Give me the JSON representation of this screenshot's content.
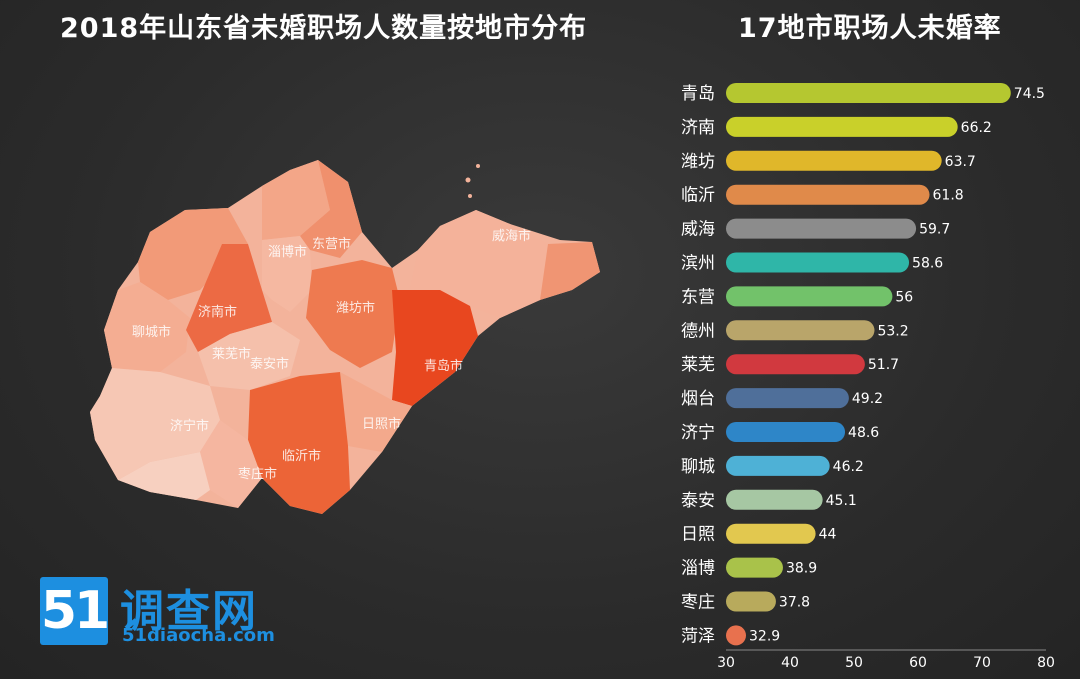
{
  "titles": {
    "map": "2018年山东省未婚职场人数量按地市分布",
    "bar": "17地市职场人未婚率"
  },
  "map_labels": [
    "聊城市",
    "济南市",
    "淄博市",
    "东营市",
    "潍坊市",
    "莱芜市",
    "泰安市",
    "济宁市",
    "青岛市",
    "日照市",
    "临沂市",
    "枣庄市",
    "威海市"
  ],
  "chart_data": [
    {
      "type": "bar",
      "orientation": "horizontal",
      "title": "17地市职场人未婚率",
      "categories": [
        "青岛",
        "济南",
        "潍坊",
        "临沂",
        "威海",
        "滨州",
        "东营",
        "德州",
        "莱芜",
        "烟台",
        "济宁",
        "聊城",
        "泰安",
        "日照",
        "淄博",
        "枣庄",
        "菏泽"
      ],
      "values": [
        74.5,
        66.2,
        63.7,
        61.8,
        59.7,
        58.6,
        56,
        53.2,
        51.7,
        49.2,
        48.6,
        46.2,
        45.1,
        44,
        38.9,
        37.8,
        32.9
      ],
      "value_labels": [
        "74.5",
        "66.2",
        "63.7",
        "61.8",
        "59.7",
        "58.6",
        "56",
        "53.2",
        "51.7",
        "49.2",
        "48.6",
        "46.2",
        "45.1",
        "44",
        "38.9",
        "37.8",
        "32.9"
      ],
      "colors": [
        "#b5c730",
        "#c9d02a",
        "#e0b72a",
        "#e08a4a",
        "#8c8c8c",
        "#2fb6a8",
        "#72c26a",
        "#b9a56a",
        "#d1393f",
        "#4f6f9a",
        "#2e86c8",
        "#4eb1d6",
        "#a6c7a3",
        "#e2c84f",
        "#a9c24a",
        "#b8aa5c",
        "#e8714e"
      ],
      "xlim": [
        30,
        80
      ],
      "xticks": [
        "30",
        "40",
        "50",
        "60",
        "70",
        "80"
      ],
      "legend": "none",
      "grid": false
    },
    {
      "type": "heatmap",
      "subtype": "choropleth-map",
      "title": "2018年山东省未婚职场人数量按地市分布",
      "region": "山东省",
      "color_scale": [
        "#f6c7b4",
        "#f0835b",
        "#e8471f"
      ]
    }
  ],
  "logo": {
    "number": "51",
    "name": "调查网",
    "url": "51diaocha.com"
  }
}
